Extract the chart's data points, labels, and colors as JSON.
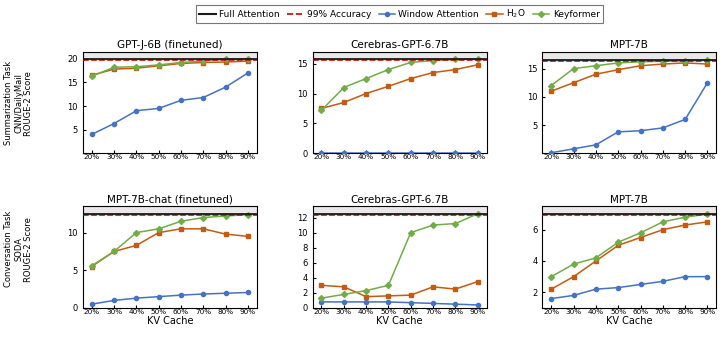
{
  "x_labels": [
    "20%",
    "30%",
    "40%",
    "50%",
    "60%",
    "70%",
    "80%",
    "90%"
  ],
  "x_vals": [
    0,
    1,
    2,
    3,
    4,
    5,
    6,
    7
  ],
  "subplots": [
    {
      "title": "GPT-J-6B (finetuned)",
      "row": 0,
      "col": 0,
      "full_attention": 20.0,
      "accuracy_99": 19.8,
      "window": [
        4.0,
        6.3,
        9.0,
        9.5,
        11.2,
        11.8,
        14.0,
        17.0
      ],
      "h2o": [
        16.5,
        17.8,
        18.0,
        18.5,
        19.0,
        19.2,
        19.3,
        19.5
      ],
      "keyformer": [
        16.3,
        18.2,
        18.3,
        18.7,
        19.2,
        19.5,
        19.9,
        20.0
      ],
      "ylim": [
        0,
        21.5
      ],
      "yticks": [
        5,
        10,
        15,
        20
      ]
    },
    {
      "title": "Cerebras-GPT-6.7B",
      "row": 0,
      "col": 1,
      "full_attention": 15.8,
      "accuracy_99": 15.6,
      "window": [
        0.05,
        0.05,
        0.05,
        0.05,
        0.05,
        0.05,
        0.05,
        0.05
      ],
      "h2o": [
        7.5,
        8.5,
        10.0,
        11.2,
        12.5,
        13.5,
        14.0,
        14.8
      ],
      "keyformer": [
        7.2,
        11.0,
        12.5,
        14.0,
        15.2,
        15.5,
        15.7,
        15.8
      ],
      "ylim": [
        0,
        17
      ],
      "yticks": [
        0,
        5,
        10,
        15
      ]
    },
    {
      "title": "MPT-7B",
      "row": 0,
      "col": 2,
      "full_attention": 16.5,
      "accuracy_99": 16.3,
      "window": [
        0.1,
        0.8,
        1.5,
        3.8,
        4.0,
        4.5,
        6.0,
        12.5
      ],
      "h2o": [
        11.0,
        12.5,
        14.0,
        14.8,
        15.5,
        15.8,
        16.0,
        15.8
      ],
      "keyformer": [
        12.0,
        15.0,
        15.5,
        16.0,
        16.2,
        16.3,
        16.4,
        16.5
      ],
      "ylim": [
        0,
        18
      ],
      "yticks": [
        5,
        10,
        15
      ]
    },
    {
      "title": "MPT-7B-chat (finetuned)",
      "row": 1,
      "col": 0,
      "full_attention": 12.5,
      "accuracy_99": 12.38,
      "window": [
        0.5,
        1.0,
        1.3,
        1.5,
        1.7,
        1.85,
        1.95,
        2.05
      ],
      "h2o": [
        5.5,
        7.5,
        8.3,
        10.0,
        10.5,
        10.5,
        9.8,
        9.5
      ],
      "keyformer": [
        5.6,
        7.5,
        10.0,
        10.5,
        11.5,
        12.0,
        12.2,
        12.4
      ],
      "ylim": [
        0,
        13.5
      ],
      "yticks": [
        0,
        5,
        10
      ]
    },
    {
      "title": "Cerebras-GPT-6.7B",
      "row": 1,
      "col": 1,
      "full_attention": 12.5,
      "accuracy_99": 12.38,
      "window": [
        0.8,
        0.8,
        0.8,
        0.8,
        0.7,
        0.6,
        0.5,
        0.4
      ],
      "h2o": [
        3.0,
        2.8,
        1.5,
        1.6,
        1.7,
        2.8,
        2.5,
        3.5
      ],
      "keyformer": [
        1.3,
        1.8,
        2.3,
        3.0,
        10.0,
        11.0,
        11.2,
        12.5
      ],
      "ylim": [
        0,
        13.5
      ],
      "yticks": [
        0,
        2,
        4,
        6,
        8,
        10,
        12
      ]
    },
    {
      "title": "MPT-7B",
      "row": 1,
      "col": 2,
      "full_attention": 7.0,
      "accuracy_99": 6.93,
      "window": [
        1.6,
        1.8,
        2.2,
        2.3,
        2.5,
        2.7,
        3.0,
        3.0
      ],
      "h2o": [
        2.2,
        3.0,
        4.0,
        5.0,
        5.5,
        6.0,
        6.3,
        6.5
      ],
      "keyformer": [
        3.0,
        3.8,
        4.2,
        5.2,
        5.8,
        6.5,
        6.8,
        7.0
      ],
      "ylim": [
        1.0,
        7.5
      ],
      "yticks": [
        2,
        4,
        6
      ]
    }
  ],
  "colors": {
    "full_attention": "#1a1a1a",
    "accuracy_99": "#cc0000",
    "window": "#4472c4",
    "h2o": "#c55a11",
    "keyformer": "#70ad47"
  },
  "row_labels": [
    "Summarization Task\nCNN/DailyMail\nROUGE-2 Score",
    "Conversation Task\nSODA\nROUGE-2 Score"
  ],
  "xlabel": "KV Cache"
}
